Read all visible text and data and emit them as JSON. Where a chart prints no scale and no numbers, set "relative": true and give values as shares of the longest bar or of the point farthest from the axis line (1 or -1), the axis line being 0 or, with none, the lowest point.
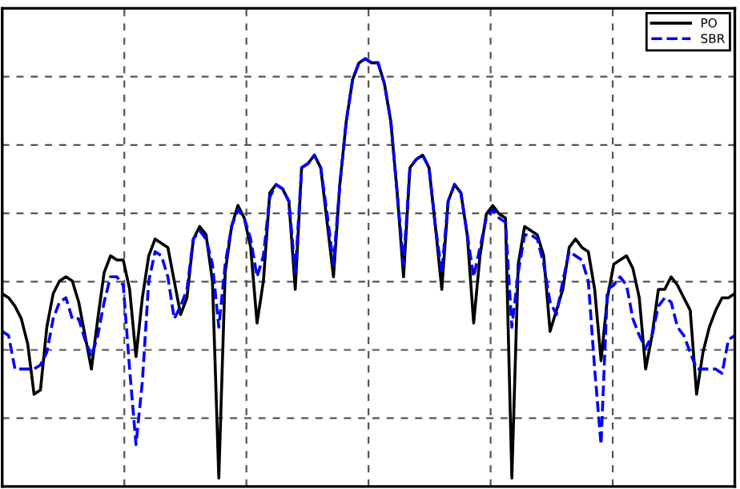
{
  "chart_data": {
    "type": "line",
    "relative": true,
    "grid": true,
    "legend": "top right",
    "categories": [
      null,
      null,
      null,
      null,
      null,
      null,
      null,
      null,
      null,
      null,
      null,
      null,
      null,
      null,
      null,
      null,
      null,
      null,
      null,
      null,
      null,
      null,
      null,
      null,
      null,
      null,
      null,
      null,
      null,
      null,
      null,
      null,
      null,
      null,
      null,
      null,
      null,
      null,
      null,
      null,
      null,
      null,
      null,
      null,
      null,
      null,
      null,
      null,
      null,
      null,
      null,
      null,
      null,
      null,
      null,
      null,
      null,
      null,
      null,
      null,
      null,
      null,
      null,
      null,
      null,
      null,
      null,
      null,
      null,
      null,
      null,
      null,
      null,
      null,
      null,
      null,
      null,
      null,
      null,
      null,
      null,
      null,
      null,
      null,
      null,
      null,
      null,
      null,
      null,
      null,
      null,
      null,
      null,
      null,
      null,
      null,
      null,
      null,
      null,
      null,
      null,
      null,
      null,
      null,
      null,
      null,
      null,
      null,
      null,
      null,
      null,
      null,
      null,
      null,
      null,
      null
    ],
    "series": [
      {
        "name": "PO",
        "color": "#000000",
        "line_style": "solid",
        "values": [
          0.44,
          0.43,
          0.41,
          0.38,
          0.32,
          0.2,
          0.21,
          0.36,
          0.44,
          0.47,
          0.48,
          0.47,
          0.42,
          0.34,
          0.26,
          0.38,
          0.49,
          0.53,
          0.52,
          0.52,
          0.45,
          0.29,
          0.43,
          0.53,
          0.57,
          0.56,
          0.55,
          0.47,
          0.39,
          0.43,
          0.57,
          0.6,
          0.58,
          0.47,
          0.0,
          0.49,
          0.6,
          0.65,
          0.62,
          0.55,
          0.37,
          0.47,
          0.68,
          0.7,
          0.69,
          0.66,
          0.45,
          0.74,
          0.75,
          0.77,
          0.74,
          0.61,
          0.48,
          0.7,
          0.85,
          0.95,
          0.99,
          1.0,
          0.99,
          0.99,
          0.94,
          0.85,
          0.68,
          0.48,
          0.74,
          0.76,
          0.77,
          0.74,
          0.6,
          0.45,
          0.66,
          0.7,
          0.68,
          0.58,
          0.37,
          0.53,
          0.63,
          0.65,
          0.63,
          0.62,
          0.0,
          0.51,
          0.6,
          0.59,
          0.58,
          0.53,
          0.35,
          0.4,
          0.45,
          0.55,
          0.57,
          0.55,
          0.54,
          0.45,
          0.28,
          0.43,
          0.51,
          0.52,
          0.53,
          0.5,
          0.43,
          0.26,
          0.34,
          0.45,
          0.45,
          0.48,
          0.46,
          0.43,
          0.4,
          0.2,
          0.3,
          0.36,
          0.4,
          0.43,
          0.43,
          0.44
        ]
      },
      {
        "name": "SBR",
        "color": "#0000ff",
        "line_style": "dashed",
        "values": [
          0.35,
          0.34,
          0.26,
          0.26,
          0.26,
          0.26,
          0.27,
          0.3,
          0.38,
          0.42,
          0.43,
          0.38,
          0.38,
          0.33,
          0.29,
          0.34,
          0.42,
          0.48,
          0.48,
          0.46,
          0.26,
          0.08,
          0.23,
          0.47,
          0.54,
          0.53,
          0.48,
          0.38,
          0.41,
          0.45,
          0.57,
          0.59,
          0.57,
          0.51,
          0.36,
          0.51,
          0.6,
          0.64,
          0.62,
          0.57,
          0.48,
          0.53,
          0.67,
          0.7,
          0.69,
          0.66,
          0.49,
          0.74,
          0.75,
          0.77,
          0.74,
          0.63,
          0.51,
          0.7,
          0.85,
          0.95,
          0.99,
          1.0,
          0.99,
          0.99,
          0.94,
          0.85,
          0.68,
          0.51,
          0.74,
          0.76,
          0.77,
          0.74,
          0.6,
          0.49,
          0.66,
          0.7,
          0.68,
          0.58,
          0.48,
          0.55,
          0.62,
          0.64,
          0.62,
          0.61,
          0.36,
          0.49,
          0.58,
          0.58,
          0.57,
          0.51,
          0.42,
          0.39,
          0.47,
          0.54,
          0.53,
          0.52,
          0.47,
          0.26,
          0.08,
          0.45,
          0.46,
          0.48,
          0.46,
          0.38,
          0.34,
          0.31,
          0.34,
          0.41,
          0.43,
          0.42,
          0.36,
          0.34,
          0.3,
          0.26,
          0.26,
          0.26,
          0.26,
          0.25,
          0.33,
          0.34
        ]
      }
    ]
  }
}
